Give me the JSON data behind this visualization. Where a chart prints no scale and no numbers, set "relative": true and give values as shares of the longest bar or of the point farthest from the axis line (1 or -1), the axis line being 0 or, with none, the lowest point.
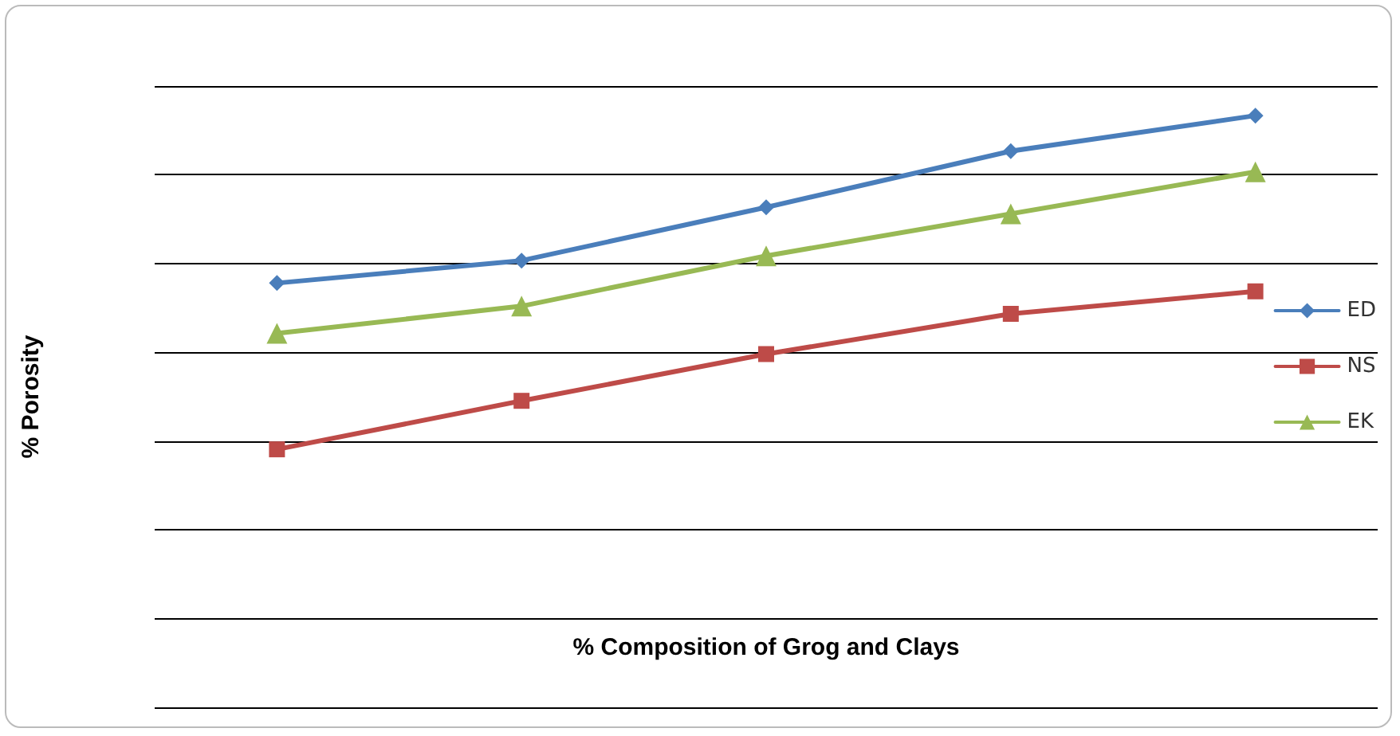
{
  "chart_data": {
    "type": "line",
    "xlabel": "% Composition of Grog and Clays",
    "ylabel": "% Porosity",
    "relative": true,
    "grid": "y",
    "legend": "right",
    "categories": [
      null,
      null,
      null,
      null,
      null
    ],
    "series": [
      {
        "name": "ED",
        "color": "#4a7ebb",
        "marker": "diamond",
        "values": [
          0.717,
          0.755,
          0.845,
          0.94,
          1
        ]
      },
      {
        "name": "NS",
        "color": "#be4b48",
        "marker": "square",
        "values": [
          0.436,
          0.518,
          0.597,
          0.665,
          0.703
        ]
      },
      {
        "name": "EK",
        "color": "#98b954",
        "marker": "triangle",
        "values": [
          0.632,
          0.678,
          0.763,
          0.834,
          0.905
        ]
      }
    ]
  }
}
